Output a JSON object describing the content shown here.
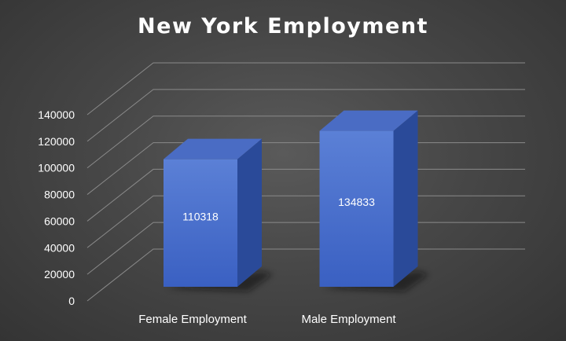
{
  "chart_data": {
    "type": "bar",
    "title": "New York Employment",
    "categories": [
      "Female Employment",
      "Male Employment"
    ],
    "values": [
      110318,
      134833
    ],
    "ylim": [
      0,
      140000
    ],
    "yticks": [
      0,
      20000,
      40000,
      60000,
      80000,
      100000,
      120000,
      140000
    ],
    "grid": true,
    "legend": "none",
    "style": "3d-column",
    "colors": {
      "bar_front_top": "#5b80d6",
      "bar_front_bottom": "#3a60c2",
      "bar_side": "#2a4a99",
      "bar_top": "#4a6cc4",
      "text": "#ffffff",
      "grid": "#8a8a8a"
    }
  }
}
